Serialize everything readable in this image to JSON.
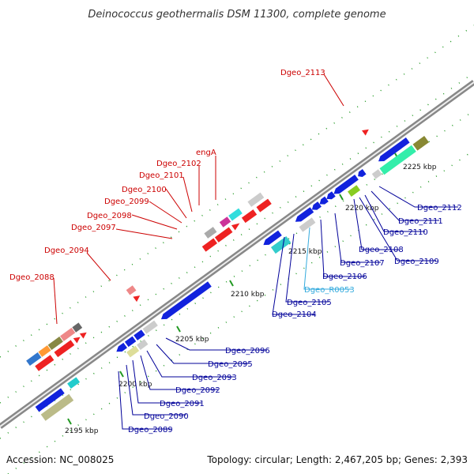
{
  "title": "Deinococcus geothermalis DSM 11300, complete genome",
  "footer": {
    "accession": "Accession: NC_008025",
    "topology": "Topology: circular; Length: 2,467,205 bp; Genes: 2,393"
  },
  "colors": {
    "top_label": "#cc0000",
    "bottom_label": "#000099",
    "rna_label": "#33aadd",
    "backbone": "#999999",
    "tick": "#229922"
  },
  "scale_labels": {
    "k2195": "2195 kbp",
    "k2200": "2200 kbp",
    "k2205": "2205 kbp",
    "k2210": "2210 kbp",
    "k2215": "2215 kbp",
    "k2220": "2220 kbp",
    "k2225": "2225 kbp"
  },
  "top_genes": {
    "g2113": "Dgeo_2113",
    "engA": "engA",
    "g2102": "Dgeo_2102",
    "g2101": "Dgeo_2101",
    "g2100": "Dgeo_2100",
    "g2099": "Dgeo_2099",
    "g2098": "Dgeo_2098",
    "g2097": "Dgeo_2097",
    "g2094": "Dgeo_2094",
    "g2088": "Dgeo_2088"
  },
  "bottom_genes": {
    "g2112": "Dgeo_2112",
    "g2111": "Dgeo_2111",
    "g2110": "Dgeo_2110",
    "g2108": "Dgeo_2108",
    "g2109": "Dgeo_2109",
    "g2107": "Dgeo_2107",
    "g2106": "Dgeo_2106",
    "R0053": "Dgeo_R0053",
    "g2105": "Dgeo_2105",
    "g2104": "Dgeo_2104",
    "g2096": "Dgeo_2096",
    "g2095": "Dgeo_2095",
    "g2093": "Dgeo_2093",
    "g2092": "Dgeo_2092",
    "g2091": "Dgeo_2091",
    "g2090": "Dgeo_2090",
    "g2089": "Dgeo_2089"
  }
}
